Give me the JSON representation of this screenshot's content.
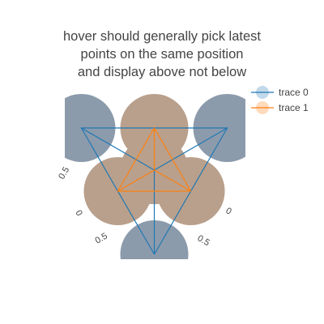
{
  "chart_data": {
    "type": "scatter",
    "subtype": "ternary",
    "title_lines": [
      "hover should generally pick latest",
      "points on the same position",
      "and display above not below"
    ],
    "series": [
      {
        "name": "trace 0",
        "color": "#1f77b4",
        "marker_color": "#8c9bab",
        "points": [
          {
            "a": 0.0,
            "b": 0.5,
            "c": 0.5
          },
          {
            "a": 0.5,
            "b": 0.0,
            "c": 0.5
          },
          {
            "a": 0.5,
            "b": 0.5,
            "c": 0.0
          },
          {
            "a": 0.3333,
            "b": 0.3333,
            "c": 0.3333
          }
        ]
      },
      {
        "name": "trace 1",
        "color": "#ff7f0e",
        "marker_color": "#b9a08c",
        "points": [
          {
            "a": 0.25,
            "b": 0.25,
            "c": 0.5
          },
          {
            "a": 0.25,
            "b": 0.5,
            "c": 0.25
          },
          {
            "a": 0.5,
            "b": 0.25,
            "c": 0.25
          },
          {
            "a": 0.3333,
            "b": 0.3333,
            "c": 0.3333
          }
        ]
      }
    ],
    "visible_tick_labels": [
      "0.5",
      "0",
      "0.5",
      "0",
      "0.5"
    ],
    "legend_position": "top-right"
  }
}
